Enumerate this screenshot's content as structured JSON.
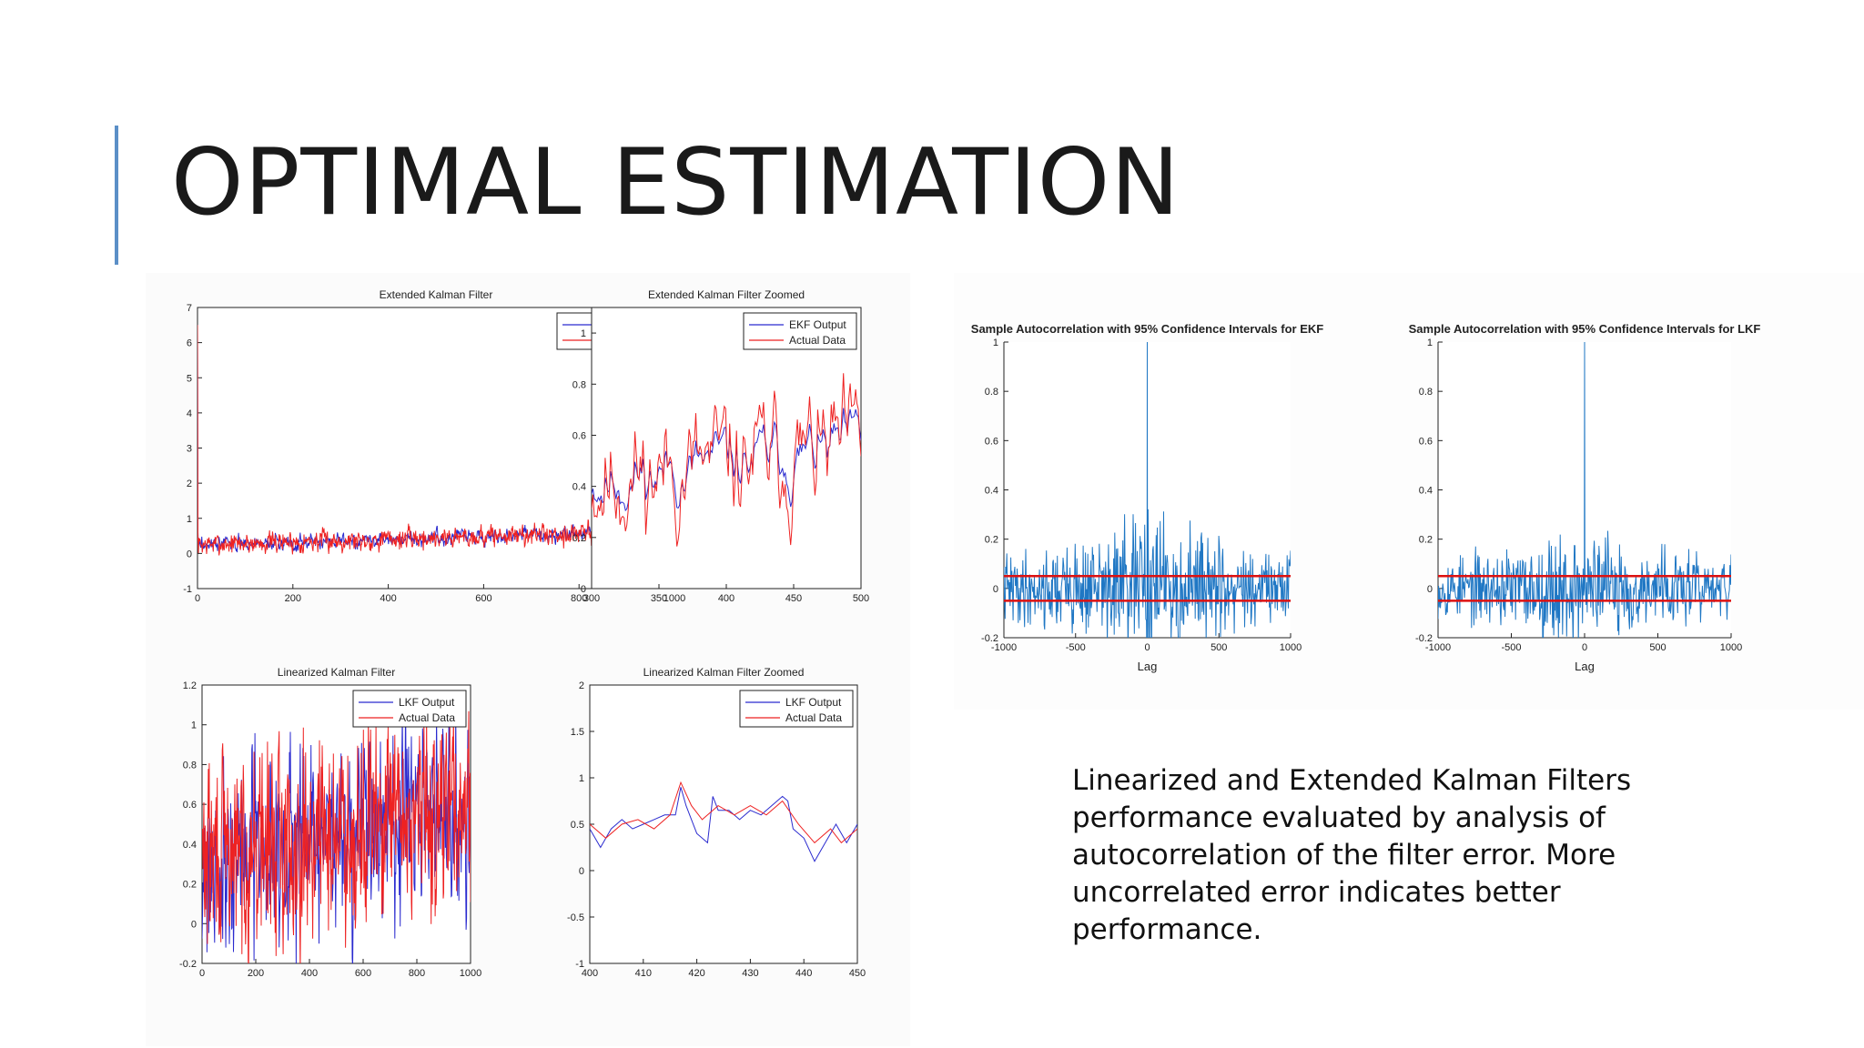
{
  "slide": {
    "title": "OPTIMAL ESTIMATION",
    "body": "Linearized and Extended Kalman Filters performance evaluated by analysis of autocorrelation of the filter error. More uncorrelated error indicates better performance.",
    "colors": {
      "accent": "#5b8fc7",
      "series_a": "#2b2bcf",
      "series_b": "#ee2222",
      "acf": "#1f77c4",
      "conf": "#dd1111"
    }
  },
  "chart_data": [
    {
      "id": "ekf",
      "type": "line",
      "title": "Extended Kalman Filter",
      "xlabel": "",
      "ylabel": "",
      "xlim": [
        0,
        1000
      ],
      "ylim": [
        -1,
        7
      ],
      "xticks": [
        0,
        200,
        400,
        600,
        800,
        1000
      ],
      "yticks": [
        -1,
        0,
        1,
        2,
        3,
        4,
        5,
        6,
        7
      ],
      "legend": {
        "position": "top-right",
        "entries": [
          "EKF Output",
          "Actual Data"
        ]
      },
      "series": [
        {
          "name": "EKF Output",
          "color": "#2b2bcf",
          "generated": {
            "n": 1000,
            "x0": 0,
            "x1": 1000,
            "base": [
              0.25,
              0.65
            ],
            "noise": 0.11,
            "smooth": 0.55,
            "seed": 3,
            "init": [
              6.5,
              0.6
            ]
          }
        },
        {
          "name": "Actual Data",
          "color": "#ee2222",
          "generated": {
            "n": 1000,
            "x0": 0,
            "x1": 1000,
            "base": [
              0.25,
              0.65
            ],
            "noise": 0.12,
            "smooth": 0.35,
            "seed": 7,
            "init": [
              6.5,
              0.4
            ]
          }
        }
      ]
    },
    {
      "id": "ekfz",
      "type": "line",
      "title": "Extended Kalman Filter Zoomed",
      "xlim": [
        300,
        500
      ],
      "ylim": [
        0,
        1.1
      ],
      "xticks": [
        300,
        350,
        400,
        450,
        500
      ],
      "yticks": [
        0,
        0.2,
        0.4,
        0.6,
        0.8,
        1
      ],
      "legend": {
        "position": "top-right",
        "entries": [
          "EKF Output",
          "Actual Data"
        ]
      },
      "series": [
        {
          "name": "EKF Output",
          "color": "#2b2bcf",
          "generated": {
            "n": 200,
            "x0": 300,
            "x1": 500,
            "base": [
              0.42,
              0.55
            ],
            "noise": 0.12,
            "smooth": 0.82,
            "seed": 11
          }
        },
        {
          "name": "Actual Data",
          "color": "#ee2222",
          "generated": {
            "n": 200,
            "x0": 300,
            "x1": 500,
            "base": [
              0.42,
              0.55
            ],
            "noise": 0.16,
            "smooth": 0.7,
            "seed": 11
          }
        }
      ]
    },
    {
      "id": "lkf",
      "type": "line",
      "title": "Linearized Kalman Filter",
      "xlim": [
        0,
        1000
      ],
      "ylim": [
        -0.2,
        1.2
      ],
      "xticks": [
        0,
        200,
        400,
        600,
        800,
        1000
      ],
      "yticks": [
        -0.2,
        0,
        0.2,
        0.4,
        0.6,
        0.8,
        1,
        1.2
      ],
      "legend": {
        "position": "top-right",
        "entries": [
          "LKF Output",
          "Actual Data"
        ]
      },
      "series": [
        {
          "name": "LKF Output",
          "color": "#2b2bcf",
          "generated": {
            "n": 600,
            "x0": 0,
            "x1": 1000,
            "base": [
              0.3,
              0.58
            ],
            "noise": 0.17,
            "smooth": 0.3,
            "seed": 21
          }
        },
        {
          "name": "Actual Data",
          "color": "#ee2222",
          "generated": {
            "n": 600,
            "x0": 0,
            "x1": 1000,
            "base": [
              0.32,
              0.6
            ],
            "noise": 0.17,
            "smooth": 0.25,
            "seed": 29
          }
        }
      ]
    },
    {
      "id": "lkfz",
      "type": "line",
      "title": "Linearized Kalman Filter Zoomed",
      "xlim": [
        400,
        450
      ],
      "ylim": [
        -1,
        2
      ],
      "xticks": [
        400,
        410,
        420,
        430,
        440,
        450
      ],
      "yticks": [
        -1,
        -0.5,
        0,
        0.5,
        1,
        1.5,
        2
      ],
      "legend": {
        "position": "top-right",
        "entries": [
          "LKF Output",
          "Actual Data"
        ]
      },
      "series": [
        {
          "name": "LKF Output",
          "color": "#2b2bcf",
          "points": [
            [
              400,
              0.45
            ],
            [
              402,
              0.25
            ],
            [
              404,
              0.45
            ],
            [
              406,
              0.55
            ],
            [
              408,
              0.45
            ],
            [
              410,
              0.5
            ],
            [
              412,
              0.55
            ],
            [
              414,
              0.6
            ],
            [
              416,
              0.6
            ],
            [
              417,
              0.9
            ],
            [
              418,
              0.7
            ],
            [
              420,
              0.4
            ],
            [
              422,
              0.3
            ],
            [
              423,
              0.8
            ],
            [
              424,
              0.65
            ],
            [
              426,
              0.65
            ],
            [
              428,
              0.55
            ],
            [
              430,
              0.65
            ],
            [
              432,
              0.6
            ],
            [
              434,
              0.7
            ],
            [
              436,
              0.8
            ],
            [
              437,
              0.75
            ],
            [
              438,
              0.45
            ],
            [
              440,
              0.35
            ],
            [
              442,
              0.1
            ],
            [
              444,
              0.3
            ],
            [
              446,
              0.5
            ],
            [
              448,
              0.3
            ],
            [
              450,
              0.5
            ]
          ]
        },
        {
          "name": "Actual Data",
          "color": "#ee2222",
          "points": [
            [
              400,
              0.5
            ],
            [
              403,
              0.35
            ],
            [
              406,
              0.5
            ],
            [
              409,
              0.55
            ],
            [
              412,
              0.45
            ],
            [
              415,
              0.6
            ],
            [
              417,
              0.95
            ],
            [
              419,
              0.7
            ],
            [
              421,
              0.55
            ],
            [
              424,
              0.7
            ],
            [
              427,
              0.6
            ],
            [
              430,
              0.7
            ],
            [
              433,
              0.6
            ],
            [
              436,
              0.75
            ],
            [
              439,
              0.5
            ],
            [
              442,
              0.3
            ],
            [
              445,
              0.45
            ],
            [
              447,
              0.3
            ],
            [
              450,
              0.45
            ]
          ]
        }
      ]
    },
    {
      "id": "acf_ekf",
      "type": "line",
      "title": "Sample Autocorrelation with 95% Confidence Intervals for EKF",
      "xlabel": "Lag",
      "ylabel": "",
      "xlim": [
        -1000,
        1000
      ],
      "ylim": [
        -0.2,
        1
      ],
      "xticks": [
        -1000,
        -500,
        0,
        500,
        1000
      ],
      "yticks": [
        -0.2,
        0,
        0.2,
        0.4,
        0.6,
        0.8,
        1
      ],
      "confidence": 0.05,
      "series": [
        {
          "name": "ACF",
          "color": "#1f77c4",
          "generated": {
            "n": 500,
            "x0": -1000,
            "x1": 1000,
            "base": [
              0,
              0
            ],
            "noise": 0.025,
            "smooth": 0,
            "seed": 41,
            "center_peak": 1,
            "center_amp": 0.09
          }
        }
      ]
    },
    {
      "id": "acf_lkf",
      "type": "line",
      "title": "Sample Autocorrelation with 95% Confidence Intervals for LKF",
      "xlabel": "Lag",
      "ylabel": "",
      "xlim": [
        -1000,
        1000
      ],
      "ylim": [
        -0.2,
        1
      ],
      "xticks": [
        -1000,
        -500,
        0,
        500,
        1000
      ],
      "yticks": [
        -0.2,
        0,
        0.2,
        0.4,
        0.6,
        0.8,
        1
      ],
      "confidence": 0.05,
      "series": [
        {
          "name": "ACF",
          "color": "#1f77c4",
          "generated": {
            "n": 500,
            "x0": -1000,
            "x1": 1000,
            "base": [
              0,
              0
            ],
            "noise": 0.022,
            "smooth": 0,
            "seed": 53,
            "center_peak": 1,
            "center_amp": 0.11
          }
        }
      ]
    }
  ]
}
